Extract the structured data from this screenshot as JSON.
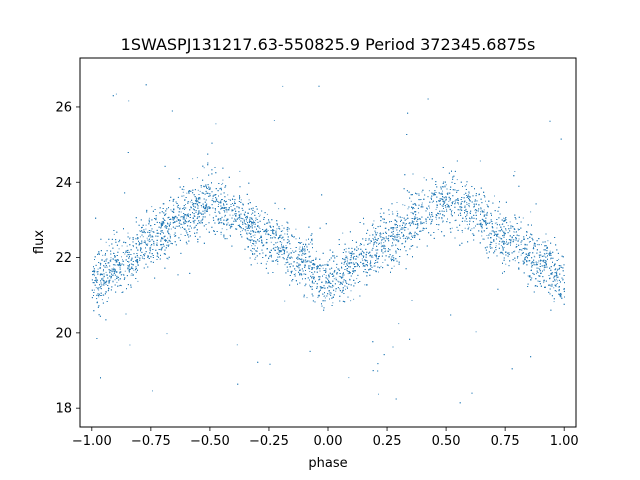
{
  "chart_data": {
    "type": "scatter",
    "title": "1SWASPJ131217.63-550825.9 Period 372345.6875s",
    "xlabel": "phase",
    "ylabel": "flux",
    "xlim": [
      -1.05,
      1.05
    ],
    "ylim": [
      17.5,
      27.3
    ],
    "x_ticks": [
      -1.0,
      -0.75,
      -0.5,
      -0.25,
      0.0,
      0.25,
      0.5,
      0.75,
      1.0
    ],
    "x_tick_labels": [
      "−1.00",
      "−0.75",
      "−0.50",
      "−0.25",
      "0.00",
      "0.25",
      "0.50",
      "0.75",
      "1.00"
    ],
    "y_ticks": [
      18,
      20,
      22,
      24,
      26
    ],
    "y_tick_labels": [
      "18",
      "20",
      "22",
      "24",
      "26"
    ],
    "grid": false,
    "legend": "none",
    "point_color": "#1f77b4",
    "series": [
      {
        "description_trend_points": [
          {
            "phase": -1.0,
            "flux": 21.3
          },
          {
            "phase": -0.85,
            "flux": 22.0
          },
          {
            "phase": -0.75,
            "flux": 22.5
          },
          {
            "phase": -0.6,
            "flux": 23.2
          },
          {
            "phase": -0.5,
            "flux": 23.5
          },
          {
            "phase": -0.4,
            "flux": 23.2
          },
          {
            "phase": -0.25,
            "flux": 22.5
          },
          {
            "phase": -0.1,
            "flux": 21.9
          },
          {
            "phase": 0.0,
            "flux": 21.3
          },
          {
            "phase": 0.15,
            "flux": 22.0
          },
          {
            "phase": 0.25,
            "flux": 22.5
          },
          {
            "phase": 0.4,
            "flux": 23.2
          },
          {
            "phase": 0.5,
            "flux": 23.5
          },
          {
            "phase": 0.6,
            "flux": 23.2
          },
          {
            "phase": 0.75,
            "flux": 22.5
          },
          {
            "phase": 0.9,
            "flux": 21.9
          },
          {
            "phase": 1.0,
            "flux": 21.3
          }
        ],
        "scatter_half_width": 0.7,
        "approx_point_count": 9000,
        "outlier_range": [
          18.0,
          26.8
        ]
      }
    ]
  }
}
